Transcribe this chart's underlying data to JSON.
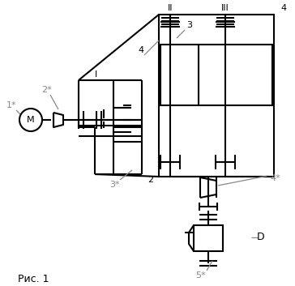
{
  "bg_color": "#ffffff",
  "lc": "#000000",
  "gc": "#888888",
  "lw": 1.5,
  "tlw": 0.9,
  "fig_caption": "Рис. 1",
  "motor_label": "M",
  "label_1s": "1*",
  "label_2s": "2*",
  "label_3s": "3*",
  "label_4s": "4*",
  "label_5s": "5*",
  "label_I": "I",
  "label_II": "II",
  "label_III": "III",
  "label_2": "2",
  "label_3": "3",
  "label_4a": "4",
  "label_4b": "4",
  "label_D": "D"
}
